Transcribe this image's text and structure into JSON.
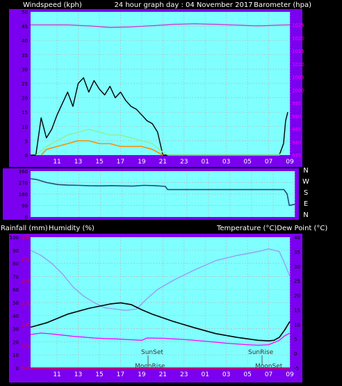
{
  "chart_data": [
    {
      "type": "line",
      "title": "24 hour graph day : 04 November 2017",
      "ylabel_left": "Windspeed (kph)",
      "ylabel_right": "Barometer (hpa)",
      "x_tick_labels": [
        "11",
        "13",
        "15",
        "17",
        "19",
        "21",
        "23",
        "01",
        "03",
        "05",
        "07",
        "09"
      ],
      "y_left_ticks": [
        "0",
        "5",
        "10",
        "15",
        "20",
        "25",
        "30",
        "35",
        "40",
        "45",
        "50"
      ],
      "y_right_ticks": [
        "975",
        "980",
        "985",
        "990",
        "995",
        "1000",
        "1005",
        "1010",
        "1015",
        "1020",
        "1025"
      ],
      "ylim_left": [
        0,
        50
      ],
      "ylim_right": [
        975,
        1030
      ],
      "series": [
        {
          "values": [
            [
              8.5,
              0
            ],
            [
              9.0,
              0
            ],
            [
              9.5,
              13
            ],
            [
              10.0,
              6
            ],
            [
              10.5,
              9
            ],
            [
              11.0,
              14
            ],
            [
              11.5,
              18
            ],
            [
              12.0,
              22
            ],
            [
              12.5,
              17
            ],
            [
              13.0,
              25
            ],
            [
              13.5,
              27
            ],
            [
              14.0,
              22
            ],
            [
              14.5,
              26
            ],
            [
              15.0,
              23
            ],
            [
              15.5,
              21
            ],
            [
              16.0,
              24
            ],
            [
              16.5,
              20
            ],
            [
              17.0,
              22
            ],
            [
              17.5,
              19
            ],
            [
              18.0,
              17
            ],
            [
              18.5,
              16
            ],
            [
              19.0,
              14
            ],
            [
              19.5,
              12
            ],
            [
              20.0,
              11
            ],
            [
              20.5,
              8
            ],
            [
              21.0,
              0
            ],
            [
              32.0,
              0
            ],
            [
              32.4,
              4
            ],
            [
              32.6,
              12
            ],
            [
              32.8,
              15
            ]
          ],
          "color": "#000000"
        },
        {
          "values": [
            [
              9.0,
              0
            ],
            [
              10.0,
              3
            ],
            [
              11.0,
              5
            ],
            [
              12.0,
              7
            ],
            [
              13.0,
              8
            ],
            [
              14.0,
              9
            ],
            [
              15.0,
              8
            ],
            [
              16.0,
              7
            ],
            [
              17.0,
              7
            ],
            [
              18.0,
              6
            ],
            [
              19.0,
              5
            ],
            [
              20.0,
              4
            ],
            [
              21.0,
              1
            ],
            [
              21.5,
              0
            ],
            [
              32.0,
              0
            ],
            [
              32.5,
              2
            ]
          ],
          "color": "#90ee90"
        },
        {
          "values": [
            [
              9.5,
              0
            ],
            [
              10.0,
              2
            ],
            [
              11.0,
              3
            ],
            [
              12.0,
              4
            ],
            [
              13.0,
              5
            ],
            [
              14.0,
              5
            ],
            [
              15.0,
              4
            ],
            [
              16.0,
              4
            ],
            [
              17.0,
              3
            ],
            [
              18.0,
              3
            ],
            [
              19.0,
              3
            ],
            [
              20.0,
              2
            ],
            [
              21.0,
              0
            ]
          ],
          "color": "#ff8c00"
        },
        {
          "values": [
            [
              8.5,
              1025.0
            ],
            [
              10.0,
              1025.0
            ],
            [
              12.0,
              1025.0
            ],
            [
              14.0,
              1024.6
            ],
            [
              16.0,
              1024.0
            ],
            [
              18.0,
              1024.2
            ],
            [
              20.0,
              1024.7
            ],
            [
              22.0,
              1025.2
            ],
            [
              24.0,
              1025.4
            ],
            [
              26.0,
              1025.2
            ],
            [
              28.0,
              1024.9
            ],
            [
              30.0,
              1024.6
            ],
            [
              32.0,
              1024.9
            ],
            [
              33.0,
              1025.0
            ]
          ],
          "color": "#cc44cc"
        }
      ]
    },
    {
      "type": "line",
      "y_ticks": [
        "0",
        "90",
        "180",
        "270",
        "360"
      ],
      "y_right_labels": [
        "N",
        "W",
        "S",
        "E",
        "N"
      ],
      "ylim": [
        0,
        360
      ],
      "series": [
        {
          "values": [
            [
              8.5,
              300
            ],
            [
              9.0,
              295
            ],
            [
              10.0,
              270
            ],
            [
              11.0,
              255
            ],
            [
              12.0,
              250
            ],
            [
              13.0,
              248
            ],
            [
              14.0,
              245
            ],
            [
              15.0,
              244
            ],
            [
              16.0,
              246
            ],
            [
              17.0,
              244
            ],
            [
              18.0,
              242
            ],
            [
              19.0,
              248
            ],
            [
              20.0,
              246
            ],
            [
              21.0,
              240
            ],
            [
              21.2,
              215
            ],
            [
              32.0,
              215
            ],
            [
              32.3,
              180
            ],
            [
              32.5,
              90
            ],
            [
              33.0,
              100
            ]
          ],
          "color": "#1f4e79"
        }
      ]
    },
    {
      "type": "line",
      "ylabel_left": "Rainfall (mm)",
      "ylabel_left2": "Humidity (%)",
      "ylabel_right": "Temperature (°C)Dew Point (°C)",
      "x_tick_labels": [
        "11",
        "13",
        "15",
        "17",
        "19",
        "21",
        "23",
        "01",
        "03",
        "05",
        "07",
        "09"
      ],
      "y_left_ticks": [
        "0",
        "10",
        "20",
        "30",
        "40",
        "50",
        "60",
        "70",
        "80",
        "90",
        "100"
      ],
      "y_rain_ticks": [
        "0.0",
        "0.5",
        "1.0",
        "1.5",
        "2.0",
        "2.5",
        "3.0"
      ],
      "y_right_ticks": [
        "-5",
        "0",
        "5",
        "10",
        "15",
        "20",
        "25",
        "30",
        "35",
        "40"
      ],
      "ylim_left": [
        0,
        100
      ],
      "ylim_right": [
        -5,
        40
      ],
      "annotations": [
        "SunSet",
        "MoonRise",
        "SunRise",
        "MoonSet"
      ],
      "series": [
        {
          "values": [
            [
              8.5,
              90
            ],
            [
              9.5,
              86
            ],
            [
              10.5,
              80
            ],
            [
              11.5,
              72
            ],
            [
              12.5,
              62
            ],
            [
              13.5,
              55
            ],
            [
              14.5,
              50
            ],
            [
              15.5,
              46
            ],
            [
              16.5,
              45
            ],
            [
              17.5,
              44
            ],
            [
              18.5,
              45
            ],
            [
              19.5,
              53
            ],
            [
              20.5,
              60
            ],
            [
              22.0,
              67
            ],
            [
              24.0,
              75
            ],
            [
              26.0,
              82
            ],
            [
              28.0,
              86
            ],
            [
              30.0,
              89
            ],
            [
              31.0,
              91
            ],
            [
              32.0,
              89
            ],
            [
              32.5,
              80
            ],
            [
              33.0,
              70
            ]
          ],
          "color": "#9999ee"
        },
        {
          "values": [
            [
              8.5,
              9.0
            ],
            [
              10.0,
              10.5
            ],
            [
              12.0,
              13.5
            ],
            [
              14.0,
              15.5
            ],
            [
              16.0,
              17.0
            ],
            [
              17.0,
              17.4
            ],
            [
              18.0,
              16.8
            ],
            [
              19.0,
              15.0
            ],
            [
              20.0,
              13.5
            ],
            [
              22.0,
              11.0
            ],
            [
              24.0,
              8.8
            ],
            [
              26.0,
              6.8
            ],
            [
              28.0,
              5.5
            ],
            [
              29.0,
              5.0
            ],
            [
              30.0,
              4.5
            ],
            [
              31.0,
              4.3
            ],
            [
              31.5,
              4.5
            ],
            [
              32.0,
              5.5
            ],
            [
              32.5,
              8.0
            ],
            [
              33.0,
              11.0
            ]
          ],
          "color": "#000000"
        },
        {
          "values": [
            [
              8.5,
              6.5
            ],
            [
              9.5,
              7.0
            ],
            [
              10.5,
              6.7
            ],
            [
              11.5,
              6.3
            ],
            [
              12.5,
              5.9
            ],
            [
              13.5,
              5.6
            ],
            [
              14.5,
              5.3
            ],
            [
              15.5,
              5.1
            ],
            [
              16.5,
              5.0
            ],
            [
              17.5,
              4.8
            ],
            [
              18.5,
              4.6
            ],
            [
              19.0,
              4.5
            ],
            [
              19.5,
              5.3
            ],
            [
              21.0,
              5.2
            ],
            [
              23.0,
              4.8
            ],
            [
              25.0,
              4.2
            ],
            [
              27.0,
              3.5
            ],
            [
              29.0,
              3.0
            ],
            [
              30.0,
              2.8
            ],
            [
              31.0,
              3.0
            ],
            [
              32.0,
              4.5
            ],
            [
              32.5,
              6.0
            ],
            [
              33.0,
              7.0
            ]
          ],
          "color": "#ff00ff"
        },
        {
          "values": [
            [
              8.5,
              0
            ],
            [
              33.0,
              0
            ]
          ],
          "color": "#ff0000"
        }
      ]
    }
  ]
}
